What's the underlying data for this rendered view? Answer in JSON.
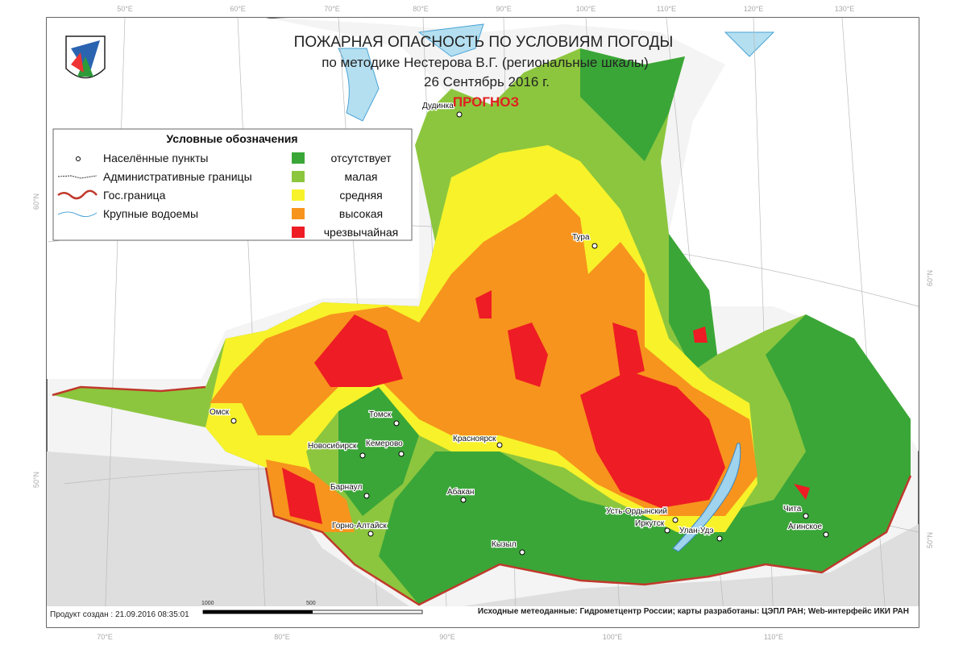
{
  "header": {
    "title": "ПОЖАРНАЯ ОПАСНОСТЬ ПО УСЛОВИЯМ ПОГОДЫ",
    "subtitle": "по методике Нестерова В.Г. (региональные шкалы)",
    "date": "26 Сентябрь 2016 г.",
    "forecast": "ПРОГНОЗ"
  },
  "legend": {
    "title": "Условные обозначения",
    "symbols": [
      {
        "label": "Населённые пункты"
      },
      {
        "label": "Административные границы"
      },
      {
        "label": "Гос.граница"
      },
      {
        "label": "Крупные водоемы"
      }
    ],
    "levels": [
      {
        "label": "отсутствует",
        "color": "#3aa638"
      },
      {
        "label": "малая",
        "color": "#8cc63e"
      },
      {
        "label": "средняя",
        "color": "#f7f22a"
      },
      {
        "label": "высокая",
        "color": "#f7941d"
      },
      {
        "label": "чрезвычайная",
        "color": "#ee1c24"
      }
    ]
  },
  "cities": [
    {
      "name": "Дудинка"
    },
    {
      "name": "Тура"
    },
    {
      "name": "Омск"
    },
    {
      "name": "Томск"
    },
    {
      "name": "Новосибирск"
    },
    {
      "name": "Кемерово"
    },
    {
      "name": "Красноярск"
    },
    {
      "name": "Барнаул"
    },
    {
      "name": "Абакан"
    },
    {
      "name": "Горно-Алтайск"
    },
    {
      "name": "Кызыл"
    },
    {
      "name": "Усть-Ордынский"
    },
    {
      "name": "Иркутск"
    },
    {
      "name": "Улан-Удэ"
    },
    {
      "name": "Чита"
    },
    {
      "name": "Агинское"
    }
  ],
  "graticule": {
    "top": [
      "50°E",
      "60°E",
      "70°E",
      "80°E",
      "90°E",
      "100°E",
      "110°E",
      "120°E",
      "130°E"
    ],
    "bottom": [
      "70°E",
      "80°E",
      "90°E",
      "100°E",
      "110°E"
    ],
    "left": [
      "60°N",
      "50°N"
    ],
    "right": [
      "60°N",
      "50°N"
    ]
  },
  "scale": {
    "labels": [
      "1000",
      "500"
    ]
  },
  "footer": {
    "created": "Продукт создан : 21.09.2016 08:35:01",
    "source": "Исходные метеоданные: Гидрометцентр России; карты разработаны: ЦЭПЛ РАН; Web-интерфейс ИКИ РАН"
  }
}
